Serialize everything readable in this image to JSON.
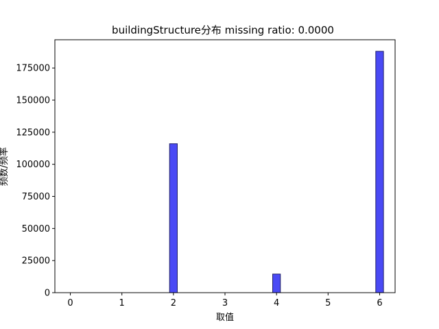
{
  "chart_data": {
    "type": "bar",
    "title": "buildingStructure分布  missing ratio: 0.0000",
    "xlabel": "取值",
    "ylabel": "频数/频率",
    "xlim": [
      -0.3,
      6.3
    ],
    "ylim": [
      0,
      197000
    ],
    "xticks": [
      0,
      1,
      2,
      3,
      4,
      5,
      6
    ],
    "yticks": [
      0,
      25000,
      50000,
      75000,
      100000,
      125000,
      150000,
      175000
    ],
    "bar_width": 0.15,
    "x": [
      2,
      4,
      6
    ],
    "values": [
      116000,
      14500,
      188000
    ],
    "grid": false,
    "colors": {
      "bar_fill": "#4a4af5",
      "bar_edge": "#1f1f66"
    }
  }
}
